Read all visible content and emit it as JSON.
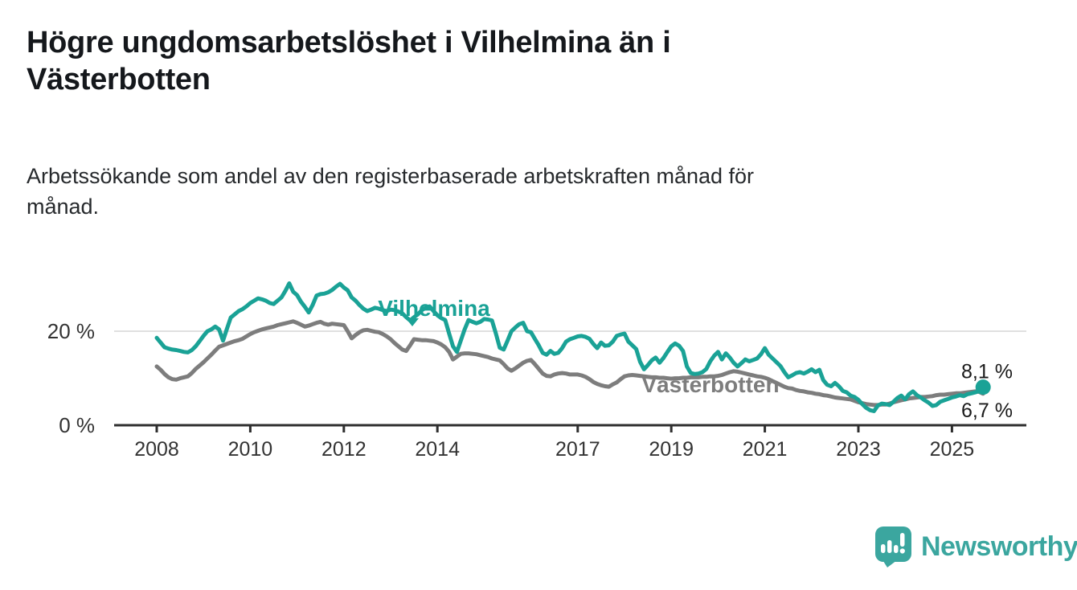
{
  "header": {
    "title": "Högre ungdomsarbetslöshet i Vilhelmina än i Västerbotten",
    "subtitle": "Arbetssökande som andel av den registerbaserade arbetskraften månad för månad."
  },
  "chart_data": {
    "type": "line",
    "title": "Högre ungdomsarbetslöshet i Vilhelmina än i Västerbotten",
    "xlabel": "",
    "ylabel": "Arbetssökande som andel av den registerbaserade arbetskraften (%)",
    "x_unit": "monthly observations, decimal years",
    "xlim": [
      2007.9,
      2025.95
    ],
    "ylim": [
      0,
      32
    ],
    "grid": "single light horizontal gridline at 20 %",
    "legend_position": "inline series labels on chart",
    "y_ticks": [
      {
        "value": 0,
        "label": "0 %"
      },
      {
        "value": 20,
        "label": "20 %"
      }
    ],
    "x_ticks": [
      {
        "value": 2008,
        "label": "2008"
      },
      {
        "value": 2010,
        "label": "2010"
      },
      {
        "value": 2012,
        "label": "2012"
      },
      {
        "value": 2014,
        "label": "2014"
      },
      {
        "value": 2017,
        "label": "2017"
      },
      {
        "value": 2019,
        "label": "2019"
      },
      {
        "value": 2021,
        "label": "2021"
      },
      {
        "value": 2023,
        "label": "2023"
      },
      {
        "value": 2025,
        "label": "2025"
      }
    ],
    "series": [
      {
        "name": "Vilhelmina",
        "color": "#1aa296",
        "start_year": 2008,
        "step_months": 1,
        "monthly_values": [
          18.6,
          17.6,
          16.6,
          16.3,
          16.1,
          16.0,
          15.8,
          15.6,
          15.5,
          16.0,
          16.8,
          17.9,
          19.0,
          20.0,
          20.4,
          21.0,
          20.4,
          18.0,
          20.5,
          22.9,
          23.6,
          24.3,
          24.7,
          25.3,
          26.0,
          26.5,
          27.0,
          26.8,
          26.5,
          26.0,
          25.8,
          26.5,
          27.2,
          28.6,
          30.2,
          28.4,
          27.7,
          26.3,
          25.2,
          24.0,
          25.6,
          27.6,
          27.9,
          28.0,
          28.3,
          28.8,
          29.5,
          30.1,
          29.3,
          28.7,
          27.2,
          26.5,
          25.6,
          24.8,
          24.3,
          24.6,
          25.0,
          24.8,
          24.5,
          24.3,
          24.6,
          24.5,
          24.2,
          23.8,
          23.0,
          22.3,
          23.0,
          23.6,
          24.5,
          25.0,
          25.3,
          24.3,
          23.4,
          22.8,
          22.4,
          19.5,
          16.8,
          15.6,
          18.0,
          20.4,
          22.4,
          22.0,
          21.7,
          22.0,
          22.6,
          22.5,
          22.3,
          19.5,
          16.5,
          16.1,
          18.0,
          20.0,
          20.8,
          21.5,
          21.8,
          20.0,
          19.8,
          18.4,
          17.0,
          15.4,
          15.0,
          15.8,
          15.2,
          15.4,
          16.4,
          17.8,
          18.3,
          18.6,
          18.9,
          19.0,
          18.8,
          18.4,
          17.3,
          16.4,
          17.6,
          16.9,
          17.0,
          17.8,
          19.0,
          19.3,
          19.5,
          17.8,
          17.0,
          16.2,
          13.5,
          11.9,
          12.8,
          13.8,
          14.4,
          13.3,
          14.3,
          15.6,
          16.8,
          17.4,
          16.9,
          15.8,
          12.5,
          11.1,
          10.9,
          11.0,
          11.3,
          12.0,
          13.6,
          14.8,
          15.6,
          14.0,
          15.3,
          14.4,
          13.3,
          12.5,
          13.2,
          14.0,
          13.6,
          13.9,
          14.2,
          15.1,
          16.4,
          15.0,
          14.2,
          13.4,
          12.6,
          11.3,
          10.2,
          10.6,
          11.1,
          11.3,
          11.0,
          11.4,
          11.9,
          11.3,
          11.8,
          9.6,
          8.6,
          8.3,
          9.0,
          8.3,
          7.3,
          7.0,
          6.3,
          6.0,
          5.4,
          4.5,
          3.7,
          3.2,
          3.0,
          4.2,
          4.6,
          4.5,
          4.3,
          5.0,
          5.8,
          6.3,
          5.5,
          6.6,
          7.2,
          6.4,
          5.9,
          5.3,
          4.8,
          4.1,
          4.3,
          5.0,
          5.3,
          5.6,
          5.9,
          6.1,
          6.4,
          6.2,
          6.6,
          6.8,
          7.0,
          7.3,
          8.1
        ]
      },
      {
        "name": "Västerbotten",
        "color": "#7d7d7d",
        "start_year": 2008,
        "step_months": 1,
        "monthly_values": [
          12.5,
          11.8,
          10.9,
          10.2,
          9.8,
          9.7,
          10.0,
          10.2,
          10.4,
          11.1,
          12.0,
          12.7,
          13.4,
          14.2,
          15.0,
          15.9,
          16.7,
          17.0,
          17.3,
          17.6,
          17.9,
          18.1,
          18.4,
          18.9,
          19.4,
          19.8,
          20.1,
          20.4,
          20.6,
          20.8,
          21.0,
          21.3,
          21.5,
          21.7,
          21.9,
          22.1,
          21.8,
          21.4,
          21.0,
          21.2,
          21.5,
          21.8,
          22.0,
          21.6,
          21.4,
          21.6,
          21.5,
          21.4,
          21.3,
          20.0,
          18.5,
          19.2,
          19.8,
          20.2,
          20.3,
          20.1,
          19.9,
          19.8,
          19.4,
          18.9,
          18.3,
          17.5,
          16.8,
          16.1,
          15.8,
          17.0,
          18.3,
          18.2,
          18.1,
          18.1,
          18.0,
          17.9,
          17.6,
          17.2,
          16.6,
          15.6,
          14.0,
          14.6,
          15.2,
          15.3,
          15.3,
          15.2,
          15.1,
          14.9,
          14.7,
          14.5,
          14.2,
          14.0,
          13.8,
          13.0,
          12.1,
          11.6,
          12.1,
          12.7,
          13.3,
          13.7,
          13.9,
          13.0,
          12.0,
          11.0,
          10.5,
          10.4,
          10.8,
          11.0,
          11.1,
          11.0,
          10.8,
          10.8,
          10.8,
          10.6,
          10.3,
          9.8,
          9.2,
          8.8,
          8.5,
          8.3,
          8.2,
          8.7,
          9.1,
          9.8,
          10.4,
          10.6,
          10.7,
          10.6,
          10.5,
          10.4,
          10.3,
          10.2,
          10.2,
          10.1,
          10.1,
          10.0,
          9.9,
          10.0,
          10.0,
          10.1,
          10.1,
          10.2,
          10.2,
          10.2,
          10.3,
          10.3,
          10.4,
          10.4,
          10.5,
          10.7,
          11.0,
          11.3,
          11.5,
          11.4,
          11.2,
          11.0,
          10.8,
          10.6,
          10.4,
          10.3,
          10.1,
          9.8,
          9.4,
          9.0,
          8.6,
          8.2,
          7.9,
          7.8,
          7.5,
          7.3,
          7.2,
          7.0,
          6.9,
          6.7,
          6.6,
          6.4,
          6.3,
          6.1,
          5.9,
          5.8,
          5.7,
          5.6,
          5.5,
          5.2,
          4.9,
          4.7,
          4.5,
          4.4,
          4.3,
          4.3,
          4.4,
          4.4,
          4.6,
          4.9,
          5.1,
          5.3,
          5.5,
          5.7,
          5.8,
          5.9,
          6.0,
          6.0,
          6.1,
          6.2,
          6.4,
          6.5,
          6.5,
          6.6,
          6.7,
          6.8,
          6.8,
          6.9,
          7.0,
          7.1,
          7.2,
          7.1,
          6.7
        ]
      }
    ],
    "end_labels": [
      {
        "series": "Vilhelmina",
        "text": "8,1 %"
      },
      {
        "series": "Västerbotten",
        "text": "6,7 %"
      }
    ],
    "annotations": [
      {
        "text": "Vilhelmina",
        "color": "#1aa296",
        "pointer": "down-triangle"
      },
      {
        "text": "Västerbotten",
        "color": "#7d7d7d",
        "pointer": "none"
      }
    ]
  },
  "footer": {
    "brand": "Newsworthy"
  }
}
